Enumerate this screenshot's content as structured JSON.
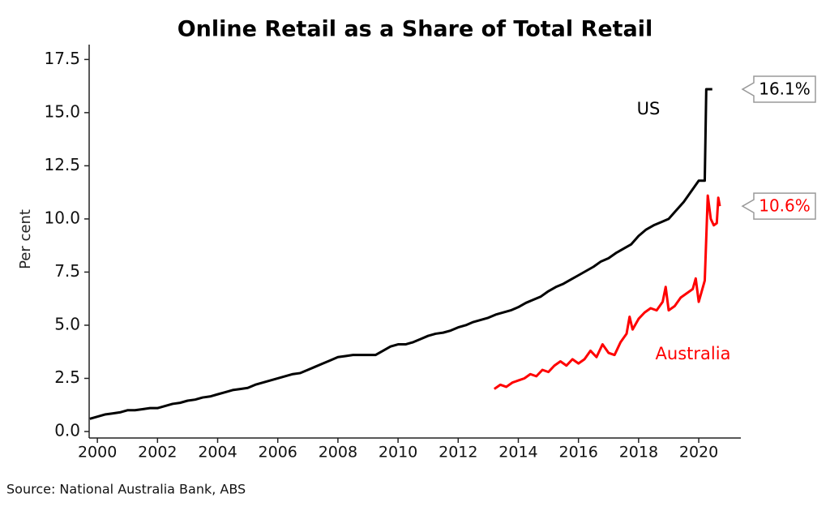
{
  "chart_data": {
    "type": "line",
    "title": "Online Retail as a Share of Total Retail",
    "ylabel": "Per cent",
    "source": "Source: National Australia Bank, ABS",
    "xlim": [
      1999.7,
      2021.4
    ],
    "xticks": [
      2000,
      2002,
      2004,
      2006,
      2008,
      2010,
      2012,
      2014,
      2016,
      2018,
      2020
    ],
    "ylim": [
      0,
      18.2
    ],
    "yticks": [
      {
        "value": 0,
        "label": "0.0"
      },
      2.5,
      {
        "value": 5,
        "label": "5.0"
      },
      7.5,
      {
        "value": 10,
        "label": "10.0"
      },
      12.5,
      {
        "value": 15,
        "label": "15.0"
      },
      17.5
    ],
    "grid": false,
    "series": [
      {
        "name": "US",
        "color": "#000000",
        "x": [
          1999.75,
          2000,
          2000.25,
          2000.5,
          2000.75,
          2001,
          2001.25,
          2001.5,
          2001.75,
          2002,
          2002.25,
          2002.5,
          2002.75,
          2003,
          2003.25,
          2003.5,
          2003.75,
          2004,
          2004.25,
          2004.5,
          2004.75,
          2005,
          2005.25,
          2005.5,
          2005.75,
          2006,
          2006.25,
          2006.5,
          2006.75,
          2007,
          2007.25,
          2007.5,
          2007.75,
          2008,
          2008.25,
          2008.5,
          2008.75,
          2009,
          2009.25,
          2009.5,
          2009.75,
          2010,
          2010.25,
          2010.5,
          2010.75,
          2011,
          2011.25,
          2011.5,
          2011.75,
          2012,
          2012.25,
          2012.5,
          2012.75,
          2013,
          2013.25,
          2013.5,
          2013.75,
          2014,
          2014.25,
          2014.5,
          2014.75,
          2015,
          2015.25,
          2015.5,
          2015.75,
          2016,
          2016.25,
          2016.5,
          2016.75,
          2017,
          2017.25,
          2017.5,
          2017.75,
          2018,
          2018.25,
          2018.5,
          2018.75,
          2019,
          2019.25,
          2019.5,
          2019.75,
          2020,
          2020.2,
          2020.25,
          2020.45
        ],
        "values": [
          0.6,
          0.7,
          0.8,
          0.85,
          0.9,
          1.0,
          1.0,
          1.05,
          1.1,
          1.1,
          1.2,
          1.3,
          1.35,
          1.45,
          1.5,
          1.6,
          1.65,
          1.75,
          1.85,
          1.95,
          2.0,
          2.05,
          2.2,
          2.3,
          2.4,
          2.5,
          2.6,
          2.7,
          2.75,
          2.9,
          3.05,
          3.2,
          3.35,
          3.5,
          3.55,
          3.6,
          3.6,
          3.6,
          3.6,
          3.8,
          4.0,
          4.1,
          4.1,
          4.2,
          4.35,
          4.5,
          4.6,
          4.65,
          4.75,
          4.9,
          5.0,
          5.15,
          5.25,
          5.35,
          5.5,
          5.6,
          5.7,
          5.85,
          6.05,
          6.2,
          6.35,
          6.6,
          6.8,
          6.95,
          7.15,
          7.35,
          7.55,
          7.75,
          8.0,
          8.15,
          8.4,
          8.6,
          8.8,
          9.2,
          9.5,
          9.7,
          9.85,
          10.0,
          10.4,
          10.8,
          11.3,
          11.8,
          11.8,
          16.1,
          16.1
        ],
        "value_labels": [
          null,
          null,
          null,
          null,
          null,
          null,
          null,
          null,
          null,
          null,
          null,
          null,
          null,
          null,
          null,
          null,
          null,
          null,
          null,
          null,
          null,
          null,
          null,
          null,
          null,
          null,
          null,
          null,
          null,
          null,
          null,
          null,
          null,
          null,
          null,
          null,
          null,
          null,
          null,
          null,
          null,
          null,
          null,
          null,
          null,
          null,
          null,
          null,
          null,
          null,
          null,
          null,
          null,
          null,
          null,
          null,
          null,
          null,
          null,
          null,
          null,
          null,
          null,
          null,
          null,
          null,
          null,
          null,
          null,
          null,
          null,
          null,
          null,
          null,
          null,
          null,
          null,
          null,
          null,
          null,
          null,
          null,
          null,
          null,
          "16.1%"
        ]
      },
      {
        "name": "Australia",
        "color": "#ff0000",
        "x": [
          2013.2,
          2013.4,
          2013.6,
          2013.8,
          2014.0,
          2014.2,
          2014.4,
          2014.6,
          2014.8,
          2015.0,
          2015.2,
          2015.4,
          2015.6,
          2015.8,
          2016.0,
          2016.2,
          2016.4,
          2016.6,
          2016.8,
          2017.0,
          2017.2,
          2017.4,
          2017.6,
          2017.7,
          2017.8,
          2018.0,
          2018.2,
          2018.4,
          2018.6,
          2018.8,
          2018.9,
          2019.0,
          2019.2,
          2019.4,
          2019.6,
          2019.8,
          2019.9,
          2020.0,
          2020.2,
          2020.3,
          2020.4,
          2020.5,
          2020.6,
          2020.65,
          2020.7
        ],
        "values": [
          2.0,
          2.2,
          2.1,
          2.3,
          2.4,
          2.5,
          2.7,
          2.6,
          2.9,
          2.8,
          3.1,
          3.3,
          3.1,
          3.4,
          3.2,
          3.4,
          3.8,
          3.5,
          4.1,
          3.7,
          3.6,
          4.2,
          4.6,
          5.4,
          4.8,
          5.3,
          5.6,
          5.8,
          5.7,
          6.1,
          6.8,
          5.7,
          5.9,
          6.3,
          6.5,
          6.7,
          7.2,
          6.1,
          7.1,
          11.1,
          10.0,
          9.7,
          9.8,
          11.0,
          10.6
        ],
        "value_labels": [
          null,
          null,
          null,
          null,
          null,
          null,
          null,
          null,
          null,
          null,
          null,
          null,
          null,
          null,
          null,
          null,
          null,
          null,
          null,
          null,
          null,
          null,
          null,
          null,
          null,
          null,
          null,
          null,
          null,
          null,
          null,
          null,
          null,
          null,
          null,
          null,
          null,
          null,
          null,
          null,
          null,
          null,
          null,
          null,
          "10.6%"
        ]
      }
    ]
  }
}
